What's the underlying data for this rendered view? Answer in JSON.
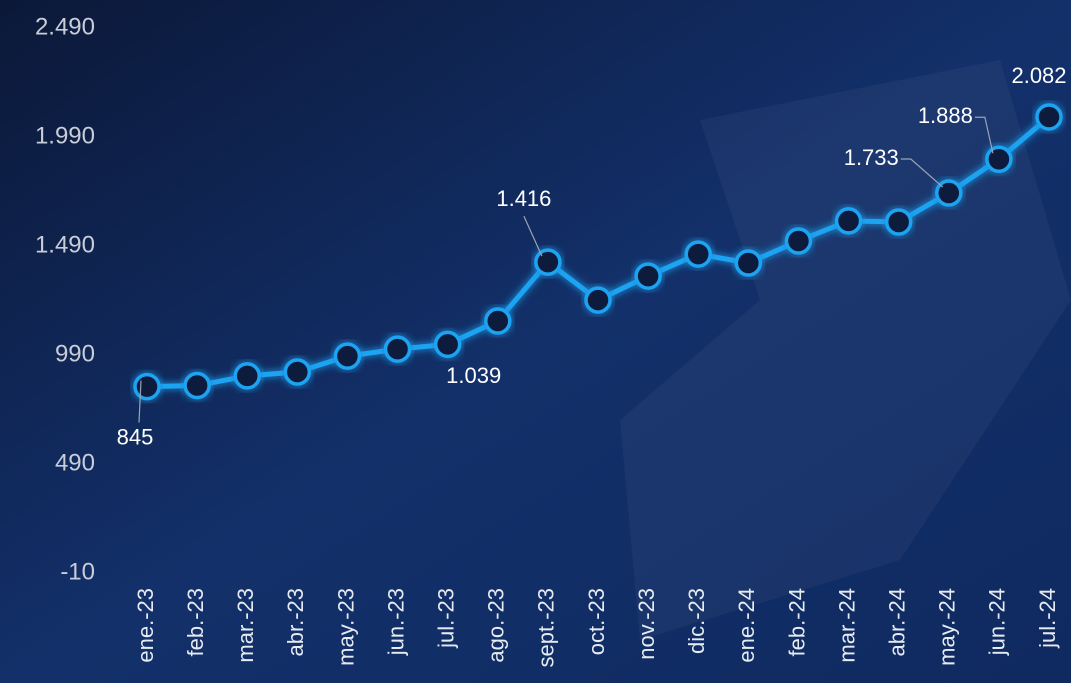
{
  "chart_data": {
    "type": "line",
    "categories": [
      "ene.-23",
      "feb.-23",
      "mar.-23",
      "abr.-23",
      "may.-23",
      "jun.-23",
      "jul.-23",
      "ago.-23",
      "sept.-23",
      "oct.-23",
      "nov.-23",
      "dic.-23",
      "ene.-24",
      "feb.-24",
      "mar.-24",
      "abr.-24",
      "may.-24",
      "jun.-24",
      "jul.-24"
    ],
    "values": [
      845,
      850,
      894,
      912,
      985,
      1017,
      1039,
      1146,
      1416,
      1242,
      1352,
      1453,
      1412,
      1513,
      1605,
      1600,
      1733,
      1888,
      2082
    ],
    "value_labels": [
      "845",
      null,
      null,
      null,
      null,
      null,
      "1.039",
      null,
      "1.416",
      null,
      null,
      null,
      null,
      null,
      null,
      null,
      "1.733",
      "1.888",
      "2.082"
    ],
    "color": "#1fa3f2",
    "ylim": [
      -10,
      2490
    ],
    "yticks": [
      -10,
      490,
      990,
      {
        "value": 1490,
        "label": "1.490"
      },
      {
        "value": 1990,
        "label": "1.990"
      },
      {
        "value": 2490,
        "label": "2.490"
      }
    ],
    "grid": false
  }
}
